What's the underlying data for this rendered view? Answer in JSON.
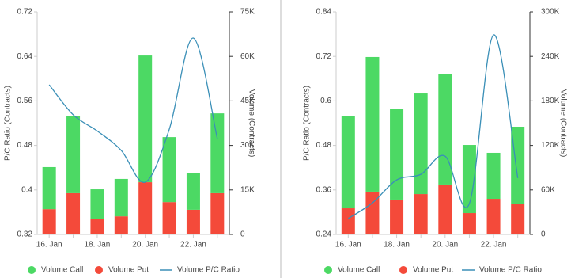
{
  "chart_data": [
    {
      "type": "combo",
      "stacked": true,
      "categories": [
        "16. Jan",
        null,
        "18. Jan",
        null,
        "20. Jan",
        null,
        "22. Jan",
        null
      ],
      "y_label": "P/C Ratio (Contracts)",
      "y2_label": "Volume (Contracts)",
      "ylim": [
        0.32,
        0.72
      ],
      "yticks": [
        0.32,
        0.4,
        0.48,
        0.56,
        0.64,
        0.72
      ],
      "y2lim": [
        0,
        75000
      ],
      "y2ticks": [
        0,
        {
          "value": 15000,
          "label": "15K"
        },
        {
          "value": 30000,
          "label": "30K"
        },
        {
          "value": 45000,
          "label": "45K"
        },
        {
          "value": 60000,
          "label": "60K"
        },
        {
          "value": 75000,
          "label": "75K"
        }
      ],
      "series": [
        {
          "name": "Volume Call",
          "type": "column",
          "axis": "y2",
          "color": "#4cd964",
          "values": [
            14200,
            26100,
            10100,
            12600,
            42700,
            21900,
            12500,
            26900
          ]
        },
        {
          "name": "Volume Put",
          "type": "column",
          "axis": "y2",
          "color": "#f44a3a",
          "values": [
            8500,
            13900,
            5100,
            6100,
            17600,
            10900,
            8300,
            13900
          ]
        },
        {
          "name": "Volume P/C Ratio",
          "type": "line",
          "axis": "y",
          "color": "#3a8fb7",
          "values": [
            0.589,
            0.535,
            0.506,
            0.471,
            0.414,
            0.509,
            0.673,
            0.492
          ]
        }
      ]
    },
    {
      "type": "combo",
      "stacked": true,
      "categories": [
        "16. Jan",
        null,
        "18. Jan",
        null,
        "20. Jan",
        null,
        "22. Jan",
        null
      ],
      "y_label": "P/C Ratio (Contracts)",
      "y2_label": "Volume (Contracts)",
      "ylim": [
        0.24,
        0.84
      ],
      "yticks": [
        0.24,
        0.36,
        0.48,
        0.6,
        0.72,
        0.84
      ],
      "y2lim": [
        0,
        300000
      ],
      "y2ticks": [
        0,
        {
          "value": 60000,
          "label": "60K"
        },
        {
          "value": 120000,
          "label": "120K"
        },
        {
          "value": 180000,
          "label": "180K"
        },
        {
          "value": 240000,
          "label": "240K"
        },
        {
          "value": 300000,
          "label": "300K"
        }
      ],
      "series": [
        {
          "name": "Volume Call",
          "type": "column",
          "axis": "y2",
          "color": "#4cd964",
          "values": [
            123900,
            181500,
            122700,
            135600,
            148400,
            91800,
            62000,
            103600
          ]
        },
        {
          "name": "Volume Put",
          "type": "column",
          "axis": "y2",
          "color": "#f44a3a",
          "values": [
            35200,
            57700,
            47000,
            54400,
            67300,
            28800,
            48000,
            41600
          ]
        },
        {
          "name": "Volume P/C Ratio",
          "type": "line",
          "axis": "y",
          "color": "#3a8fb7",
          "values": [
            0.283,
            0.325,
            0.387,
            0.402,
            0.451,
            0.323,
            0.778,
            0.392
          ]
        }
      ]
    }
  ]
}
